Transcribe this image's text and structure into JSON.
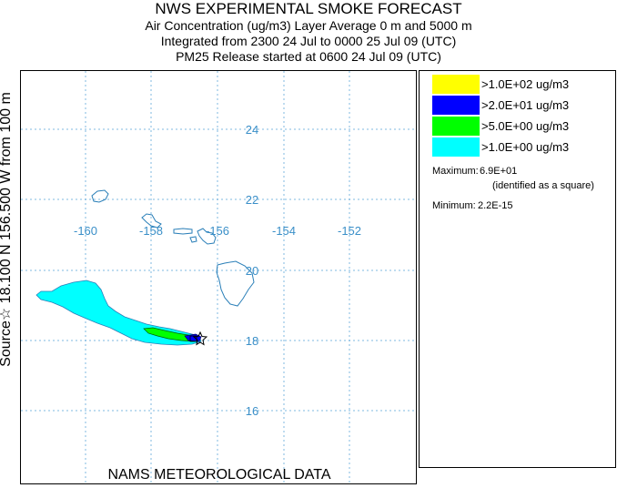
{
  "header": {
    "title": "NWS EXPERIMENTAL SMOKE FORECAST",
    "line1": "Air Concentration (ug/m3) Layer Average    0 m and  5000 m",
    "line2": "Integrated from 2300 24 Jul to 0000 25 Jul 09 (UTC)",
    "line3": "PM25 Release started at 0600 24 Jul 09 (UTC)"
  },
  "side_label": "Source☆ 18.100  N 156.500  W     from  100 m",
  "footer": "NAMS METEOROLOGICAL DATA",
  "map": {
    "lon_labels": [
      "-160",
      "-158",
      "-156",
      "-154",
      "-152"
    ],
    "lat_labels": [
      "24",
      "22",
      "20",
      "18",
      "16"
    ],
    "grid_color": "#7fb8e0",
    "label_color": "#3a8fc8",
    "coast_color": "#2a7fb8",
    "source_marker": "star-icon"
  },
  "legend": {
    "items": [
      {
        "label": ">1.0E+02 ug/m3",
        "color": "#ffff00"
      },
      {
        "label": ">2.0E+01 ug/m3",
        "color": "#0000ff"
      },
      {
        "label": ">5.0E+00 ug/m3",
        "color": "#00ff00"
      },
      {
        "label": ">1.0E+00 ug/m3",
        "color": "#00ffff"
      }
    ],
    "maximum_label": "Maximum:",
    "maximum_value": "6.9E+01",
    "maximum_note": "(identified as a square)",
    "minimum_label": "Minimum:",
    "minimum_value": "2.2E-15"
  }
}
